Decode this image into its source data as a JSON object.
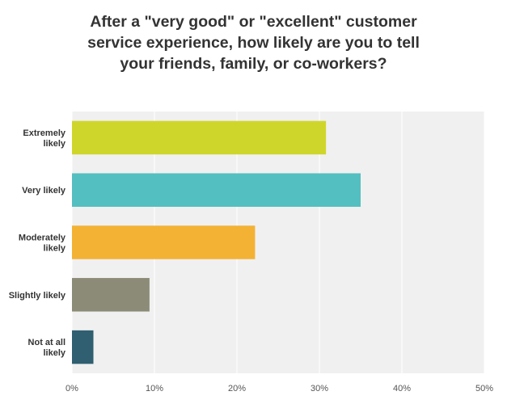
{
  "chart_data": {
    "type": "bar",
    "orientation": "horizontal",
    "title_lines": [
      "After a \"very good\" or \"excellent\" customer",
      "service experience, how likely are you to tell",
      "your friends, family, or co-workers?"
    ],
    "categories": [
      [
        "Extremely",
        "likely"
      ],
      [
        "Very likely"
      ],
      [
        "Moderately",
        "likely"
      ],
      [
        "Slightly likely"
      ],
      [
        "Not at all",
        "likely"
      ]
    ],
    "values": [
      30.8,
      35.0,
      22.2,
      9.4,
      2.6
    ],
    "colors": [
      "#cfd62b",
      "#53bfc0",
      "#f3b234",
      "#8b8b77",
      "#2f5f70"
    ],
    "xlim": [
      0,
      50
    ],
    "xticks": [
      0,
      10,
      20,
      30,
      40,
      50
    ],
    "xtick_labels": [
      "0%",
      "10%",
      "20%",
      "30%",
      "40%",
      "50%"
    ],
    "grid": true,
    "background": "#f0f0f0",
    "gridline_color": "#ffffff"
  }
}
